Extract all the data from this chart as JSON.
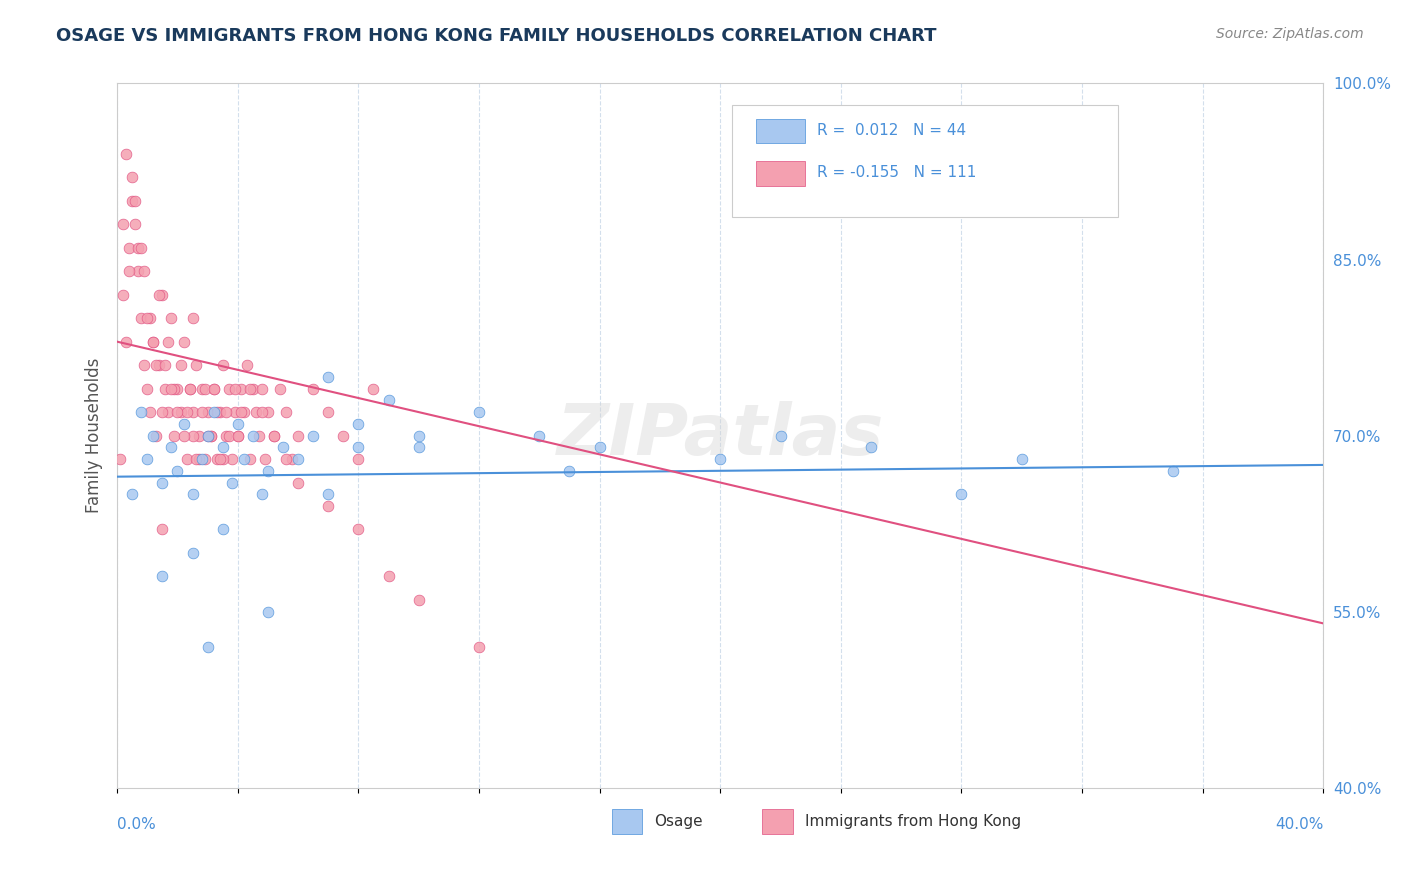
{
  "title": "OSAGE VS IMMIGRANTS FROM HONG KONG FAMILY HOUSEHOLDS CORRELATION CHART",
  "source_text": "Source: ZipAtlas.com",
  "ylabel": "Family Households",
  "ylabel_right_ticks": [
    "40.0%",
    "55.0%",
    "70.0%",
    "85.0%",
    "100.0%"
  ],
  "ylabel_right_values": [
    0.4,
    0.55,
    0.7,
    0.85,
    1.0
  ],
  "xlim": [
    0.0,
    0.4
  ],
  "ylim": [
    0.4,
    1.0
  ],
  "blue_R": 0.012,
  "blue_N": 44,
  "pink_R": -0.155,
  "pink_N": 111,
  "blue_color": "#a8c8f0",
  "pink_color": "#f4a0b0",
  "blue_line_color": "#4a90d9",
  "pink_line_color": "#e05080",
  "legend_label_blue": "Osage",
  "legend_label_pink": "Immigrants from Hong Kong",
  "watermark": "ZIPatlas",
  "background_color": "#ffffff",
  "grid_color": "#c8d8e8",
  "title_color": "#1a3a5c",
  "axis_label_color": "#4a90d9",
  "blue_scatter_x": [
    0.005,
    0.008,
    0.01,
    0.012,
    0.015,
    0.018,
    0.02,
    0.022,
    0.025,
    0.028,
    0.03,
    0.032,
    0.035,
    0.038,
    0.04,
    0.042,
    0.045,
    0.048,
    0.05,
    0.055,
    0.06,
    0.065,
    0.07,
    0.08,
    0.09,
    0.1,
    0.12,
    0.14,
    0.16,
    0.2,
    0.22,
    0.25,
    0.28,
    0.3,
    0.35,
    0.015,
    0.025,
    0.035,
    0.05,
    0.07,
    0.1,
    0.15,
    0.08,
    0.03
  ],
  "blue_scatter_y": [
    0.65,
    0.72,
    0.68,
    0.7,
    0.66,
    0.69,
    0.67,
    0.71,
    0.65,
    0.68,
    0.7,
    0.72,
    0.69,
    0.66,
    0.71,
    0.68,
    0.7,
    0.65,
    0.67,
    0.69,
    0.68,
    0.7,
    0.65,
    0.71,
    0.73,
    0.69,
    0.72,
    0.7,
    0.69,
    0.68,
    0.7,
    0.69,
    0.65,
    0.68,
    0.67,
    0.58,
    0.6,
    0.62,
    0.55,
    0.75,
    0.7,
    0.67,
    0.69,
    0.52
  ],
  "pink_scatter_x": [
    0.001,
    0.002,
    0.003,
    0.004,
    0.005,
    0.006,
    0.007,
    0.008,
    0.009,
    0.01,
    0.011,
    0.012,
    0.013,
    0.014,
    0.015,
    0.016,
    0.017,
    0.018,
    0.019,
    0.02,
    0.021,
    0.022,
    0.023,
    0.024,
    0.025,
    0.026,
    0.027,
    0.028,
    0.029,
    0.03,
    0.031,
    0.032,
    0.033,
    0.034,
    0.035,
    0.036,
    0.037,
    0.038,
    0.039,
    0.04,
    0.041,
    0.042,
    0.043,
    0.044,
    0.045,
    0.046,
    0.047,
    0.048,
    0.049,
    0.05,
    0.052,
    0.054,
    0.056,
    0.058,
    0.06,
    0.065,
    0.07,
    0.075,
    0.08,
    0.085,
    0.003,
    0.005,
    0.007,
    0.009,
    0.011,
    0.013,
    0.015,
    0.017,
    0.019,
    0.021,
    0.023,
    0.025,
    0.027,
    0.029,
    0.031,
    0.033,
    0.035,
    0.037,
    0.039,
    0.041,
    0.002,
    0.004,
    0.006,
    0.008,
    0.01,
    0.012,
    0.014,
    0.016,
    0.018,
    0.02,
    0.022,
    0.024,
    0.026,
    0.028,
    0.03,
    0.032,
    0.034,
    0.036,
    0.04,
    0.044,
    0.048,
    0.052,
    0.056,
    0.06,
    0.07,
    0.08,
    0.09,
    0.1,
    0.12,
    0.015,
    0.025
  ],
  "pink_scatter_y": [
    0.68,
    0.82,
    0.78,
    0.86,
    0.92,
    0.88,
    0.84,
    0.8,
    0.76,
    0.74,
    0.72,
    0.78,
    0.7,
    0.76,
    0.82,
    0.74,
    0.72,
    0.8,
    0.7,
    0.74,
    0.72,
    0.78,
    0.68,
    0.74,
    0.72,
    0.76,
    0.7,
    0.74,
    0.68,
    0.72,
    0.7,
    0.74,
    0.68,
    0.72,
    0.76,
    0.7,
    0.74,
    0.68,
    0.72,
    0.7,
    0.74,
    0.72,
    0.76,
    0.68,
    0.74,
    0.72,
    0.7,
    0.74,
    0.68,
    0.72,
    0.7,
    0.74,
    0.72,
    0.68,
    0.7,
    0.74,
    0.72,
    0.7,
    0.68,
    0.74,
    0.94,
    0.9,
    0.86,
    0.84,
    0.8,
    0.76,
    0.72,
    0.78,
    0.74,
    0.76,
    0.72,
    0.7,
    0.68,
    0.74,
    0.7,
    0.72,
    0.68,
    0.7,
    0.74,
    0.72,
    0.88,
    0.84,
    0.9,
    0.86,
    0.8,
    0.78,
    0.82,
    0.76,
    0.74,
    0.72,
    0.7,
    0.74,
    0.68,
    0.72,
    0.7,
    0.74,
    0.68,
    0.72,
    0.7,
    0.74,
    0.72,
    0.7,
    0.68,
    0.66,
    0.64,
    0.62,
    0.58,
    0.56,
    0.52,
    0.62,
    0.8
  ],
  "blue_line_x": [
    0.0,
    0.4
  ],
  "blue_line_y": [
    0.665,
    0.675
  ],
  "pink_line_x": [
    0.0,
    0.4
  ],
  "pink_line_y": [
    0.78,
    0.54
  ]
}
